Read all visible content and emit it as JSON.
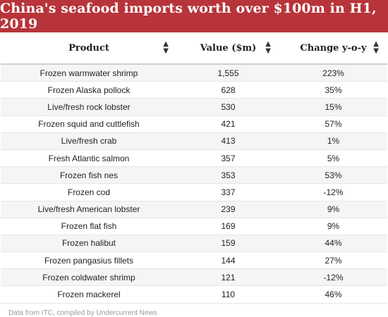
{
  "chart_data": {
    "type": "table",
    "title": "China's seafood imports worth over $100m in H1, 2019",
    "columns": [
      "Product",
      "Value ($m)",
      "Change y-o-y"
    ],
    "rows": [
      {
        "product": "Frozen warmwater shrimp",
        "value": "1,555",
        "change": "223%"
      },
      {
        "product": "Frozen Alaska pollock",
        "value": "628",
        "change": "35%"
      },
      {
        "product": "Live/fresh rock lobster",
        "value": "530",
        "change": "15%"
      },
      {
        "product": "Frozen squid and cuttlefish",
        "value": "421",
        "change": "57%"
      },
      {
        "product": "Live/fresh crab",
        "value": "413",
        "change": "1%"
      },
      {
        "product": "Fresh Atlantic salmon",
        "value": "357",
        "change": "5%"
      },
      {
        "product": "Frozen fish nes",
        "value": "353",
        "change": "53%"
      },
      {
        "product": "Frozen cod",
        "value": "337",
        "change": "-12%"
      },
      {
        "product": "Live/fresh American lobster",
        "value": "239",
        "change": "9%"
      },
      {
        "product": "Frozen flat fish",
        "value": "169",
        "change": "9%"
      },
      {
        "product": "Frozen halibut",
        "value": "159",
        "change": "44%"
      },
      {
        "product": "Frozen pangasius fillets",
        "value": "144",
        "change": "27%"
      },
      {
        "product": "Frozen coldwater shrimp",
        "value": "121",
        "change": "-12%"
      },
      {
        "product": "Frozen mackerel",
        "value": "110",
        "change": "46%"
      }
    ],
    "source": "Data from ITC, compiled by Undercurrent News"
  },
  "icons": {
    "sort": "sort-arrows-icon"
  },
  "colors": {
    "title_bg": "#b7343a",
    "row_alt": "#f5f5f5"
  }
}
